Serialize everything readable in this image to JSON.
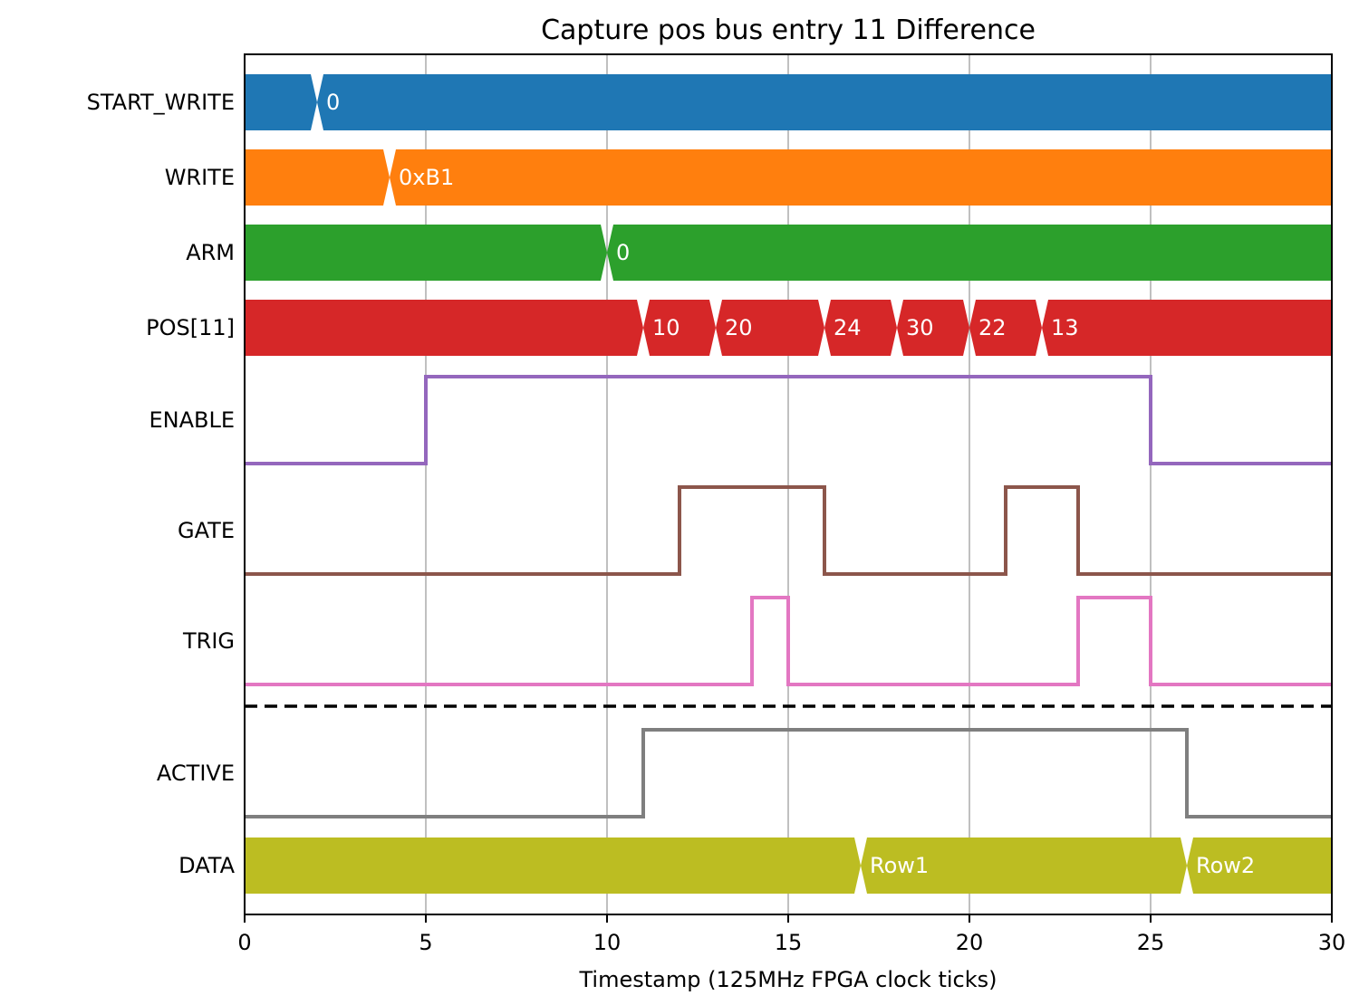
{
  "chart_data": {
    "type": "timing_diagram",
    "title": "Capture pos bus entry 11 Difference",
    "xlabel": "Timestamp (125MHz FPGA clock ticks)",
    "xlim": [
      0,
      30
    ],
    "xticks": [
      0,
      5,
      10,
      15,
      20,
      25,
      30
    ],
    "grid": "vertical",
    "signals": [
      {
        "name": "START_WRITE",
        "kind": "bus",
        "color": "#1f77b4",
        "changes": [
          {
            "t": 2,
            "value": "0"
          }
        ]
      },
      {
        "name": "WRITE",
        "kind": "bus",
        "color": "#ff7f0e",
        "changes": [
          {
            "t": 4,
            "value": "0xB1"
          }
        ]
      },
      {
        "name": "ARM",
        "kind": "bus",
        "color": "#2ca02c",
        "changes": [
          {
            "t": 10,
            "value": "0"
          }
        ]
      },
      {
        "name": "POS[11]",
        "kind": "bus",
        "color": "#d62728",
        "changes": [
          {
            "t": 11,
            "value": "10"
          },
          {
            "t": 13,
            "value": "20"
          },
          {
            "t": 16,
            "value": "24"
          },
          {
            "t": 18,
            "value": "30"
          },
          {
            "t": 20,
            "value": "22"
          },
          {
            "t": 22,
            "value": "13"
          }
        ]
      },
      {
        "name": "ENABLE",
        "kind": "bit",
        "color": "#9467bd",
        "steps": [
          [
            0,
            0
          ],
          [
            5,
            1
          ],
          [
            25,
            0
          ]
        ]
      },
      {
        "name": "GATE",
        "kind": "bit",
        "color": "#8c564b",
        "steps": [
          [
            0,
            0
          ],
          [
            12,
            1
          ],
          [
            16,
            0
          ],
          [
            21,
            1
          ],
          [
            23,
            0
          ]
        ]
      },
      {
        "name": "TRIG",
        "kind": "bit",
        "color": "#e377c2",
        "steps": [
          [
            0,
            0
          ],
          [
            14,
            1
          ],
          [
            15,
            0
          ],
          [
            23,
            1
          ],
          [
            25,
            0
          ]
        ]
      },
      {
        "name": "ACTIVE",
        "kind": "bit",
        "color": "#7f7f7f",
        "steps": [
          [
            0,
            0
          ],
          [
            11,
            1
          ],
          [
            26,
            0
          ]
        ]
      },
      {
        "name": "DATA",
        "kind": "bus",
        "color": "#bcbd22",
        "changes": [
          {
            "t": 17,
            "value": "Row1"
          },
          {
            "t": 26,
            "value": "Row2"
          }
        ]
      }
    ],
    "separator_after": "TRIG"
  }
}
